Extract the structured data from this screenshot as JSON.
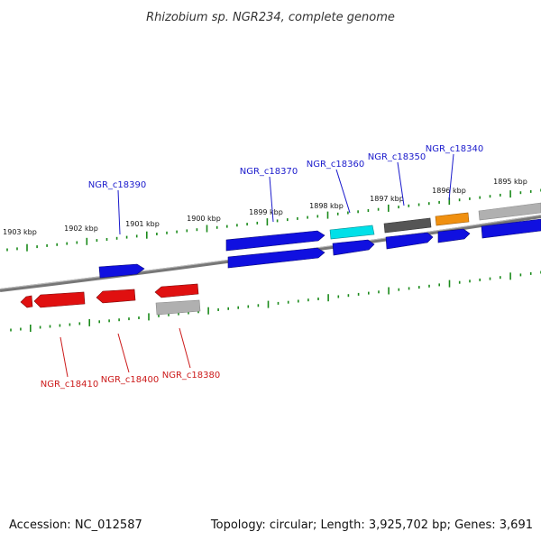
{
  "title": "Rhizobium sp. NGR234, complete genome",
  "footer": {
    "accession": "Accession: NC_012587",
    "topology": "Topology: circular; Length: 3,925,702 bp; Genes: 3,691"
  },
  "ruler_labels": [
    "1903 kbp",
    "1902 kbp",
    "1901 kbp",
    "1900 kbp",
    "1899 kbp",
    "1898 kbp",
    "1897 kbp",
    "1896 kbp",
    "1895 kbp"
  ],
  "gene_labels_forward": [
    "NGR_c18390",
    "NGR_c18370",
    "NGR_c18360",
    "NGR_c18350",
    "NGR_c18340"
  ],
  "gene_labels_reverse": [
    "NGR_c18410",
    "NGR_c18400",
    "NGR_c18380"
  ],
  "colors": {
    "forward": "#1010e0",
    "reverse": "#e01010",
    "cyan": "#00e0e8",
    "dark_gray": "#555555",
    "light_gray": "#b0b0b0",
    "orange": "#f09010",
    "tick": "#1a8a1a",
    "backbone": "#7a7a7a"
  }
}
